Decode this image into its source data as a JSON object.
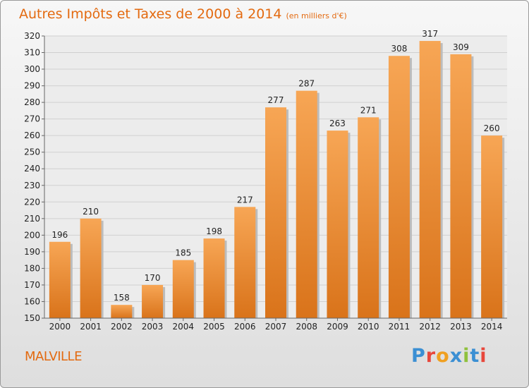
{
  "title": "Autres Impôts et Taxes de 2000 à 2014",
  "subtitle": "(en milliers d'€)",
  "place": "MALVILLE",
  "logo": {
    "text": "Proxiti",
    "letters": [
      {
        "ch": "P",
        "color": "#3b8fd3"
      },
      {
        "ch": "r",
        "color": "#e8473b"
      },
      {
        "ch": "o",
        "color": "#f0a020"
      },
      {
        "ch": "x",
        "color": "#3b8fd3"
      },
      {
        "ch": "i",
        "color": "#8fc13d"
      },
      {
        "ch": "t",
        "color": "#3b8fd3"
      },
      {
        "ch": "i",
        "color": "#e8473b"
      }
    ]
  },
  "colors": {
    "bar_top": "#f7a655",
    "bar_bottom": "#d9731a",
    "accent": "#e36a10"
  },
  "chart_data": {
    "type": "bar",
    "title": "Autres Impôts et Taxes de 2000 à 2014",
    "subtitle": "(en milliers d'€)",
    "categories": [
      "2000",
      "2001",
      "2002",
      "2003",
      "2004",
      "2005",
      "2006",
      "2007",
      "2008",
      "2009",
      "2010",
      "2011",
      "2012",
      "2013",
      "2014"
    ],
    "values": [
      196,
      210,
      158,
      170,
      185,
      198,
      217,
      277,
      287,
      263,
      271,
      308,
      317,
      309,
      260
    ],
    "ylim": [
      150,
      320
    ],
    "yticks": [
      150,
      160,
      170,
      180,
      190,
      200,
      210,
      220,
      230,
      240,
      250,
      260,
      270,
      280,
      290,
      300,
      310,
      320
    ],
    "grid": true,
    "legend": "none"
  }
}
